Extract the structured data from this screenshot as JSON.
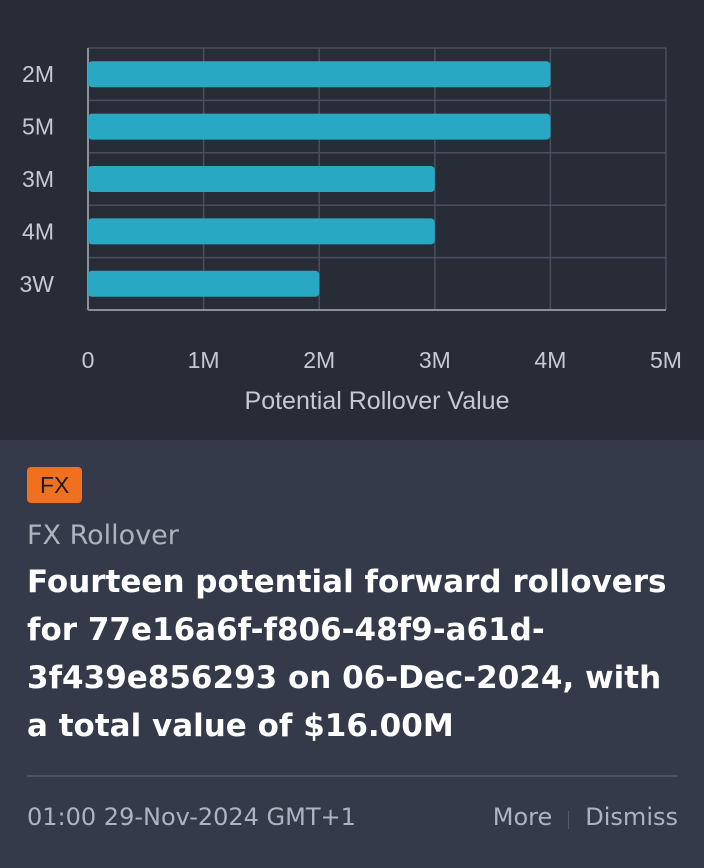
{
  "colors": {
    "bar": "#29a8c4",
    "grid": "#4a4f5e",
    "tag_bg": "#f0701e"
  },
  "chart_data": {
    "type": "bar",
    "orientation": "horizontal",
    "categories": [
      "2M",
      "5M",
      "3M",
      "4M",
      "3W"
    ],
    "values": [
      4000000,
      4000000,
      3000000,
      3000000,
      2000000
    ],
    "xlabel": "Potential Rollover Value",
    "xlim": [
      0,
      5000000
    ],
    "xticks": [
      "0",
      "1M",
      "2M",
      "3M",
      "4M",
      "5M"
    ],
    "grid": true
  },
  "notification": {
    "tag": "FX",
    "category": "FX Rollover",
    "headline": "Fourteen potential forward rollovers for 77e16a6f-f806-48f9-a61d-3f439e856293 on 06-Dec-2024, with a total value of $16.00M",
    "timestamp": "01:00 29-Nov-2024 GMT+1",
    "more_label": "More",
    "dismiss_label": "Dismiss"
  }
}
